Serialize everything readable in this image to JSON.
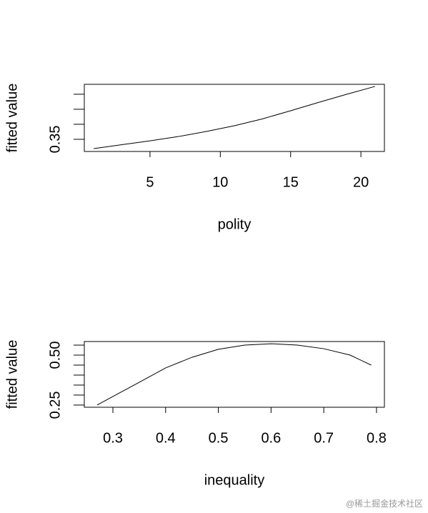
{
  "chart_data": [
    {
      "type": "line",
      "xlabel": "polity",
      "ylabel": "fitted value",
      "x": [
        1,
        3,
        5,
        7,
        9,
        11,
        13,
        15,
        17,
        19,
        21
      ],
      "values": [
        0.319,
        0.332,
        0.345,
        0.359,
        0.376,
        0.395,
        0.418,
        0.445,
        0.473,
        0.5,
        0.526
      ],
      "color": "#000000",
      "xlim": [
        0.33,
        21.67
      ],
      "ylim": [
        0.3095,
        0.533
      ],
      "xticks": [
        5,
        10,
        15,
        20
      ],
      "yticks": [
        0.35,
        {
          "value": 0.4
        },
        {
          "value": 0.45
        },
        {
          "value": 0.5
        }
      ]
    },
    {
      "type": "line",
      "xlabel": "inequality",
      "ylabel": "fitted value",
      "x": [
        0.27,
        0.3,
        0.35,
        0.4,
        0.45,
        0.5,
        0.55,
        0.6,
        0.65,
        0.7,
        0.75,
        0.79
      ],
      "values": [
        0.25,
        0.293,
        0.364,
        0.436,
        0.489,
        0.529,
        0.55,
        0.557,
        0.55,
        0.532,
        0.5,
        0.45
      ],
      "color": "#000000",
      "xlim": [
        0.2458,
        0.815
      ],
      "ylim": [
        0.239,
        0.568
      ],
      "xticks": [
        0.3,
        0.4,
        0.5,
        0.6,
        0.7,
        0.8
      ],
      "yticks": [
        0.25,
        {
          "value": 0.3
        },
        {
          "value": 0.35
        },
        {
          "value": 0.4
        },
        {
          "value": 0.45
        },
        {
          "value": 0.5,
          "label": "0.50"
        },
        {
          "value": 0.55
        }
      ]
    }
  ],
  "watermark": "@稀土掘金技术社区"
}
